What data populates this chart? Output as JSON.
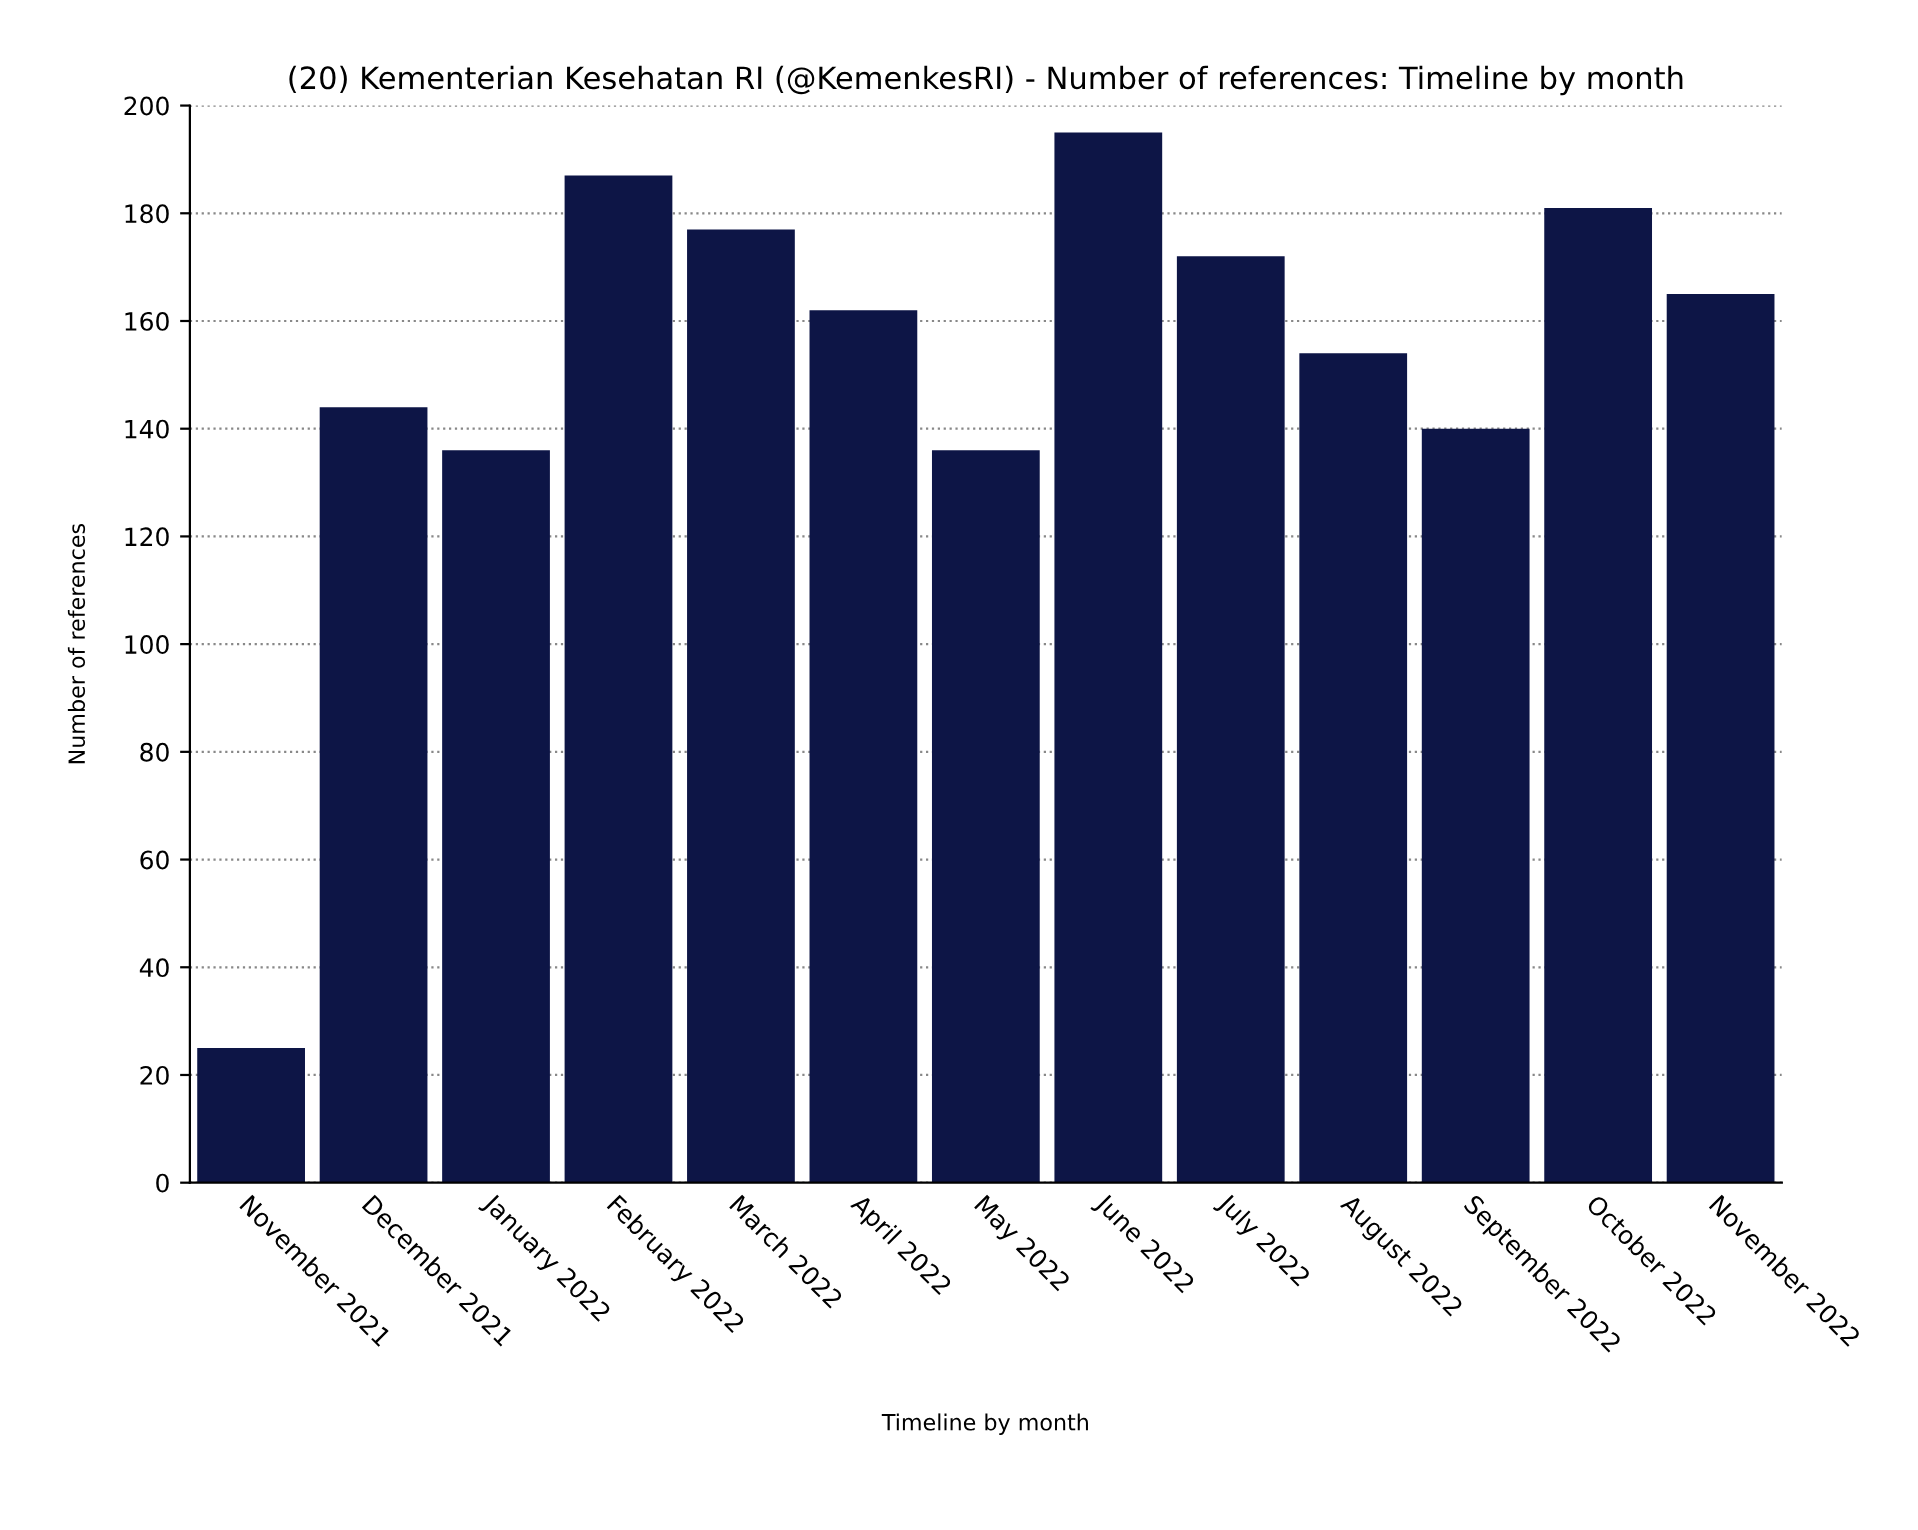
{
  "chart_data": {
    "type": "bar",
    "title": "(20) Kementerian Kesehatan RI (@KemenkesRI) - Number of references: Timeline by month",
    "xlabel": "Timeline by month",
    "ylabel": "Number of references",
    "categories": [
      "November 2021",
      "December 2021",
      "January 2022",
      "February 2022",
      "March 2022",
      "April 2022",
      "May 2022",
      "June 2022",
      "July 2022",
      "August 2022",
      "September 2022",
      "October 2022",
      "November 2022"
    ],
    "values": [
      25,
      144,
      136,
      187,
      177,
      162,
      136,
      195,
      172,
      154,
      140,
      181,
      165
    ],
    "color": "#0d1546",
    "ylim": [
      0,
      200
    ],
    "yticks": [
      0,
      20,
      40,
      60,
      80,
      100,
      120,
      140,
      160,
      180,
      200
    ],
    "grid": "y",
    "legend": false
  }
}
